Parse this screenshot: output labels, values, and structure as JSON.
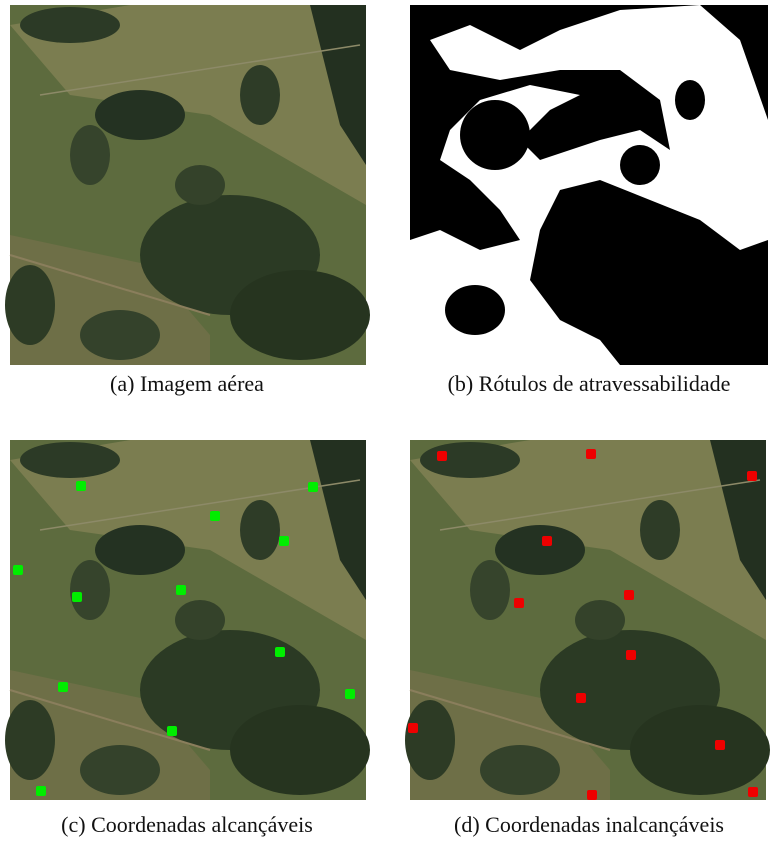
{
  "figure": {
    "panels": [
      {
        "caption": "(a) Imagem aérea"
      },
      {
        "caption": "(b) Rótulos de atravessabilidade"
      },
      {
        "caption": "(c) Coordenadas alcançáveis"
      },
      {
        "caption": "(d) Coordenadas inalcançáveis"
      }
    ]
  }
}
